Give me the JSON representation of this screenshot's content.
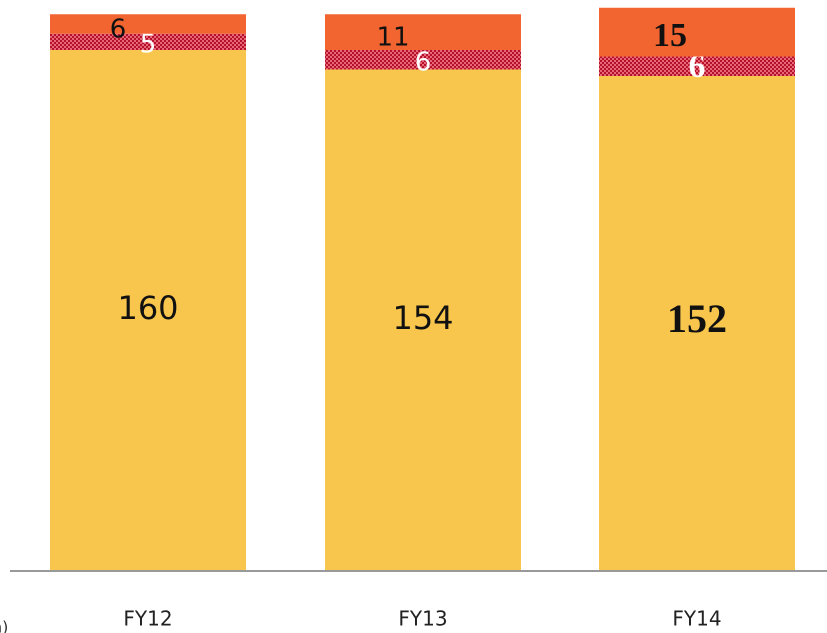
{
  "chart_data": {
    "type": "stacked_bar",
    "categories": [
      "FY12",
      "FY13",
      "FY14"
    ],
    "series": [
      {
        "color": "#f8c64c",
        "values": [
          160,
          154,
          152
        ]
      },
      {
        "color": "#c8102e",
        "values": [
          5,
          6,
          6
        ]
      },
      {
        "color": "#f26430",
        "values": [
          6,
          11,
          15
        ]
      }
    ],
    "axis_label": "h)"
  }
}
